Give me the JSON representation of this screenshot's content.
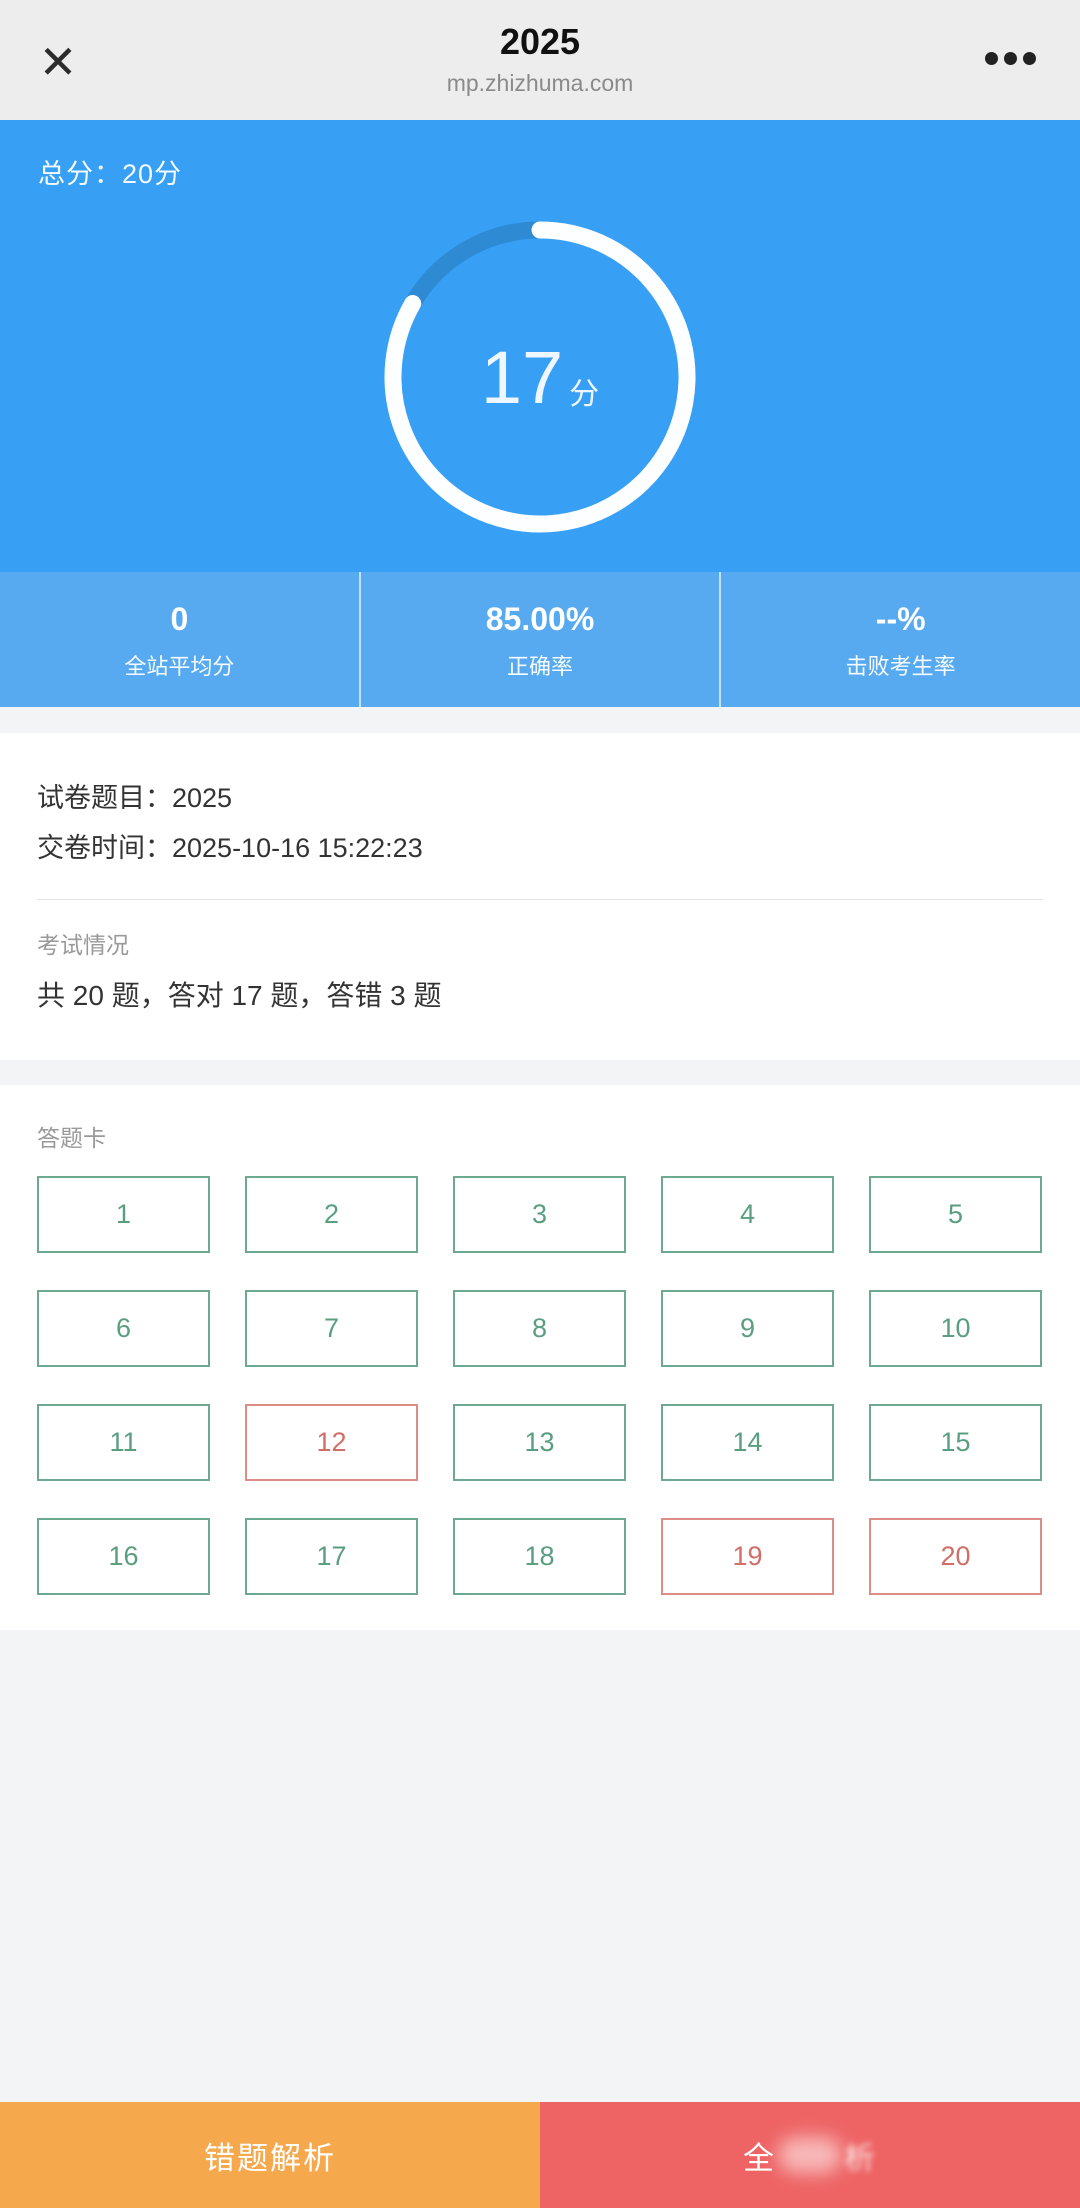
{
  "header": {
    "title": "2025",
    "url": "mp.zhizhuma.com",
    "close_icon": "close-x-icon",
    "menu_icon": "three-dots-menu-icon"
  },
  "hero": {
    "total_label": "总分：20分",
    "score_value": "17",
    "score_unit": "分",
    "progress_percent": 85
  },
  "stats": {
    "items": [
      {
        "value": "0",
        "label": "全站平均分"
      },
      {
        "value": "85.00%",
        "label": "正确率"
      },
      {
        "value": "--%",
        "label": "击败考生率"
      }
    ]
  },
  "paper_info": {
    "title_line": "试卷题目：2025",
    "submit_line": "交卷时间：2025-10-16 15:22:23"
  },
  "exam_status": {
    "section_label": "考试情况",
    "summary": "共 20 题，答对 17 题，答错 3 题"
  },
  "answer_card": {
    "section_label": "答题卡",
    "cells": [
      {
        "n": "1",
        "state": "correct"
      },
      {
        "n": "2",
        "state": "correct"
      },
      {
        "n": "3",
        "state": "correct"
      },
      {
        "n": "4",
        "state": "correct"
      },
      {
        "n": "5",
        "state": "correct"
      },
      {
        "n": "6",
        "state": "correct"
      },
      {
        "n": "7",
        "state": "correct"
      },
      {
        "n": "8",
        "state": "correct"
      },
      {
        "n": "9",
        "state": "correct"
      },
      {
        "n": "10",
        "state": "correct"
      },
      {
        "n": "11",
        "state": "correct"
      },
      {
        "n": "12",
        "state": "wrong"
      },
      {
        "n": "13",
        "state": "correct"
      },
      {
        "n": "14",
        "state": "correct"
      },
      {
        "n": "15",
        "state": "correct"
      },
      {
        "n": "16",
        "state": "correct"
      },
      {
        "n": "17",
        "state": "correct"
      },
      {
        "n": "18",
        "state": "correct"
      },
      {
        "n": "19",
        "state": "wrong"
      },
      {
        "n": "20",
        "state": "wrong"
      }
    ]
  },
  "footer": {
    "left_label": "错题解析",
    "right_label_prefix": "全",
    "right_label_suffix": "析"
  },
  "colors": {
    "page_bg": "#f3f4f6",
    "header_bg": "#ededed",
    "hero_blue": "#379ff4",
    "ring_white": "#fdfeff",
    "ring_track": "#2d8ad3",
    "stats_blue": "#57aaf0",
    "green": "#6da890",
    "green_text": "#5a9e80",
    "red": "#dd8c86",
    "red_text": "#d06e67",
    "orange": "#f6a84d",
    "coral": "#ee6465"
  }
}
